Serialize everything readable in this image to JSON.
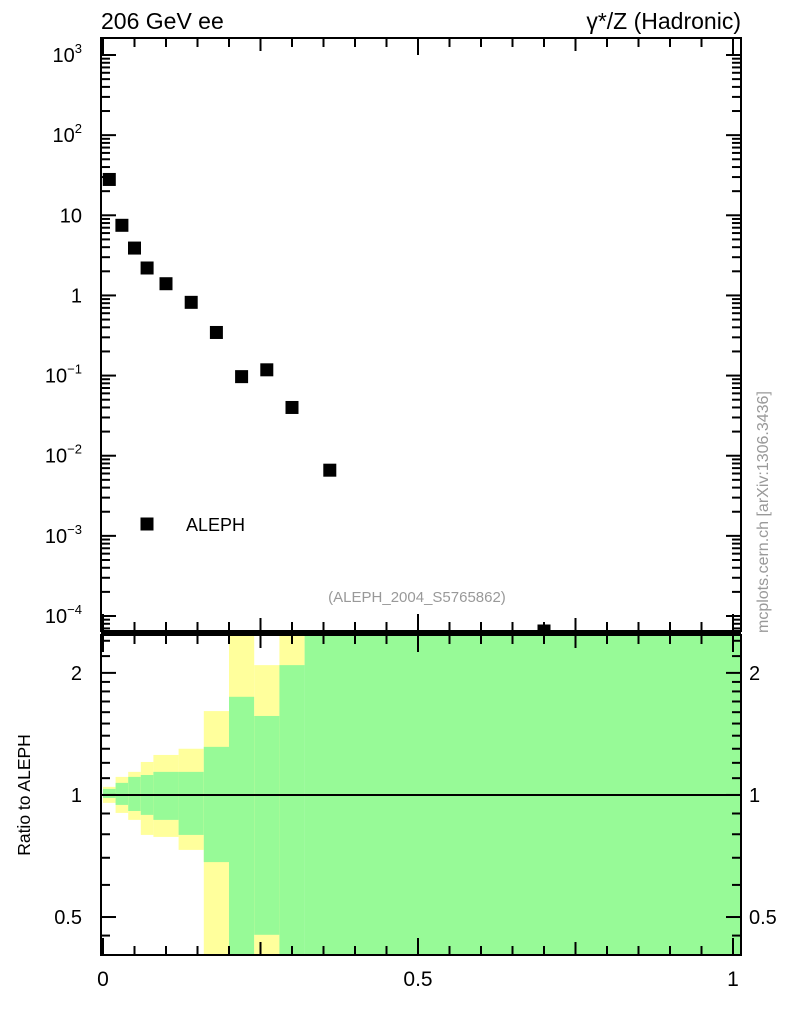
{
  "header": {
    "left_title": "206 GeV ee",
    "right_title": "γ*/Z (Hadronic)"
  },
  "watermarks": {
    "analysis_label": "(ALEPH_2004_S5765862)",
    "side_label": "mcplots.cern.ch [arXiv:1306.3436]"
  },
  "colors": {
    "band_green": "#97fa97",
    "band_yellow": "#ffff9c",
    "marker": "#000000",
    "gray_text": "#999999",
    "axis": "#000000"
  },
  "chart_data": [
    {
      "type": "scatter",
      "panel": "main",
      "title_left": "206 GeV ee",
      "title_right": "γ*/Z (Hadronic)",
      "xscale": "linear",
      "yscale": "log",
      "xlim": [
        0,
        1
      ],
      "ylim": [
        6.5e-05,
        1630
      ],
      "grid": false,
      "legend": {
        "label": "ALEPH",
        "marker": "filled-black-square",
        "position": "inside-left"
      },
      "annotation": "(ALEPH_2004_S5765862)",
      "ytick_labels": [
        {
          "v": 1000,
          "base": "10",
          "exp": "3"
        },
        {
          "v": 100,
          "base": "10",
          "exp": "2"
        },
        {
          "v": 10,
          "base": "10",
          "exp": ""
        },
        {
          "v": 1,
          "base": "1",
          "exp": ""
        },
        {
          "v": 0.1,
          "base": "10",
          "exp": "−1"
        },
        {
          "v": 0.01,
          "base": "10",
          "exp": "−2"
        },
        {
          "v": 0.001,
          "base": "10",
          "exp": "−3"
        },
        {
          "v": 0.0001,
          "base": "10",
          "exp": "−4"
        }
      ],
      "xtick_labels": [
        {
          "v": 0,
          "label": "0"
        },
        {
          "v": 0.5,
          "label": "0.5"
        },
        {
          "v": 1,
          "label": "1"
        }
      ],
      "series": [
        {
          "name": "ALEPH",
          "marker": "filled-square",
          "x": [
            0.01,
            0.03,
            0.05,
            0.07,
            0.1,
            0.14,
            0.18,
            0.22,
            0.26,
            0.3,
            0.36,
            0.7
          ],
          "y": [
            28,
            7.5,
            3.9,
            2.2,
            1.4,
            0.82,
            0.345,
            0.097,
            0.118,
            0.04,
            0.0066,
            6.5e-05
          ]
        }
      ]
    },
    {
      "type": "ratio-bands",
      "panel": "ratio",
      "ylabel": "Ratio to ALEPH",
      "yscale": "log",
      "ylim": [
        0.403,
        2.48
      ],
      "reference_line": 1,
      "ytick_labels": [
        {
          "v": 2,
          "label": "2"
        },
        {
          "v": 1,
          "label": "1"
        },
        {
          "v": 0.5,
          "label": "0.5"
        }
      ],
      "yminor_ticks": [
        0.45,
        0.6,
        0.7,
        0.8,
        0.9,
        1.1,
        1.2,
        1.3,
        1.4,
        1.5,
        1.6,
        1.7,
        1.8,
        1.9,
        2.2,
        2.4
      ],
      "xtick_labels": [
        {
          "v": 0,
          "label": "0"
        },
        {
          "v": 0.5,
          "label": "0.5"
        },
        {
          "v": 1,
          "label": "1"
        }
      ],
      "bins": [
        {
          "x": [
            0.0,
            0.02
          ],
          "yellow": [
            0.956,
            1.047
          ],
          "green": [
            0.983,
            1.035
          ]
        },
        {
          "x": [
            0.02,
            0.04
          ],
          "yellow": [
            0.903,
            1.108
          ],
          "green": [
            0.945,
            1.071
          ]
        },
        {
          "x": [
            0.04,
            0.06
          ],
          "yellow": [
            0.868,
            1.14
          ],
          "green": [
            0.913,
            1.108
          ]
        },
        {
          "x": [
            0.06,
            0.08
          ],
          "yellow": [
            0.797,
            1.206
          ],
          "green": [
            0.893,
            1.12
          ]
        },
        {
          "x": [
            0.08,
            0.12
          ],
          "yellow": [
            0.788,
            1.255
          ],
          "green": [
            0.868,
            1.14
          ]
        },
        {
          "x": [
            0.12,
            0.16
          ],
          "yellow": [
            0.732,
            1.3
          ],
          "green": [
            0.797,
            1.14
          ]
        },
        {
          "x": [
            0.16,
            0.2
          ],
          "yellow": [
            0.403,
            1.61
          ],
          "green": [
            0.683,
            1.314
          ]
        },
        {
          "x": [
            0.2,
            0.24
          ],
          "yellow": [
            0.403,
            2.48
          ],
          "green": [
            0.403,
            1.746
          ]
        },
        {
          "x": [
            0.24,
            0.28
          ],
          "yellow": [
            0.403,
            2.09
          ],
          "green": [
            0.452,
            1.566
          ]
        },
        {
          "x": [
            0.28,
            0.32
          ],
          "yellow": [
            0.403,
            2.48
          ],
          "green": [
            0.403,
            2.09
          ]
        },
        {
          "x": [
            0.32,
            0.4
          ],
          "yellow": null,
          "green": [
            0.403,
            2.48
          ]
        },
        {
          "x": [
            0.4,
            1.0
          ],
          "yellow": null,
          "green": [
            0.403,
            2.48
          ]
        }
      ]
    }
  ]
}
